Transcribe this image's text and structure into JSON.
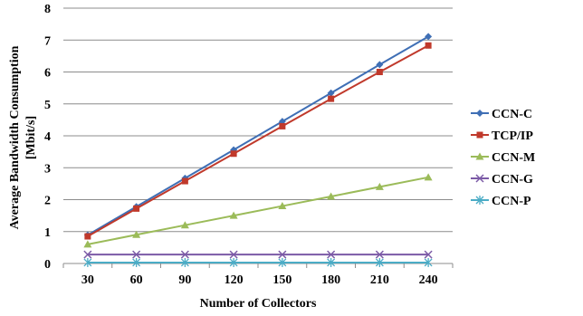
{
  "chart_data": {
    "type": "line",
    "xlabel": "Number of Collectors",
    "ylabel_lines": [
      "Average Bandwidth Consumption",
      "[Mbit/s]"
    ],
    "categories": [
      30,
      60,
      90,
      120,
      150,
      180,
      210,
      240
    ],
    "ylim": [
      0,
      8
    ],
    "yticks": [
      0,
      1,
      2,
      3,
      4,
      5,
      6,
      7,
      8
    ],
    "grid": true,
    "legend_position": "right",
    "series": [
      {
        "name": "CCN-C",
        "color": "#3f6fb5",
        "marker": "diamond",
        "values": [
          0.89,
          1.78,
          2.67,
          3.56,
          4.45,
          5.34,
          6.23,
          7.11
        ]
      },
      {
        "name": "TCP/IP",
        "color": "#c0392b",
        "marker": "square",
        "values": [
          0.85,
          1.72,
          2.58,
          3.44,
          4.3,
          5.16,
          6.0,
          6.83
        ]
      },
      {
        "name": "CCN-M",
        "color": "#9bbb59",
        "marker": "triangle",
        "values": [
          0.6,
          0.9,
          1.2,
          1.5,
          1.8,
          2.1,
          2.4,
          2.7
        ]
      },
      {
        "name": "CCN-G",
        "color": "#7b5aa6",
        "marker": "x",
        "values": [
          0.28,
          0.28,
          0.28,
          0.28,
          0.28,
          0.28,
          0.28,
          0.28
        ]
      },
      {
        "name": "CCN-P",
        "color": "#4bacc6",
        "marker": "star",
        "values": [
          0.03,
          0.03,
          0.03,
          0.03,
          0.03,
          0.03,
          0.03,
          0.03
        ]
      }
    ]
  }
}
